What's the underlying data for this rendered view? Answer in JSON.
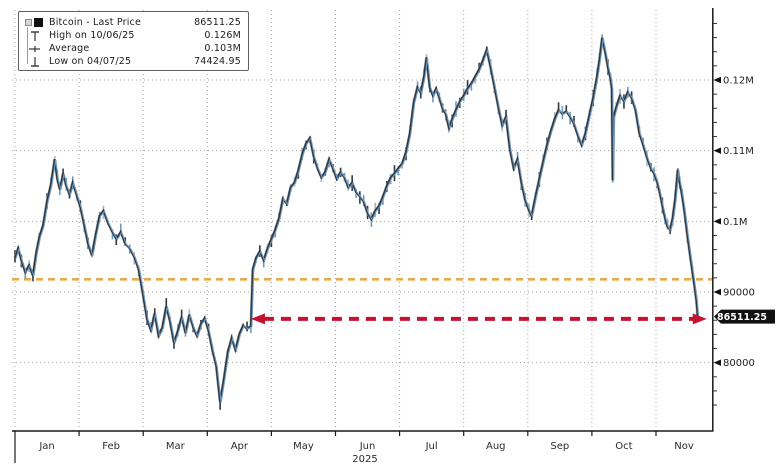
{
  "chart_data": {
    "type": "line",
    "title": "Bitcoin - Last Price",
    "last_price": 86511.25,
    "x_axis": {
      "month_labels": [
        "Jan",
        "Feb",
        "Mar",
        "Apr",
        "May",
        "Jun",
        "Jul",
        "Aug",
        "Sep",
        "Oct",
        "Nov"
      ],
      "year_label": "2025"
    },
    "y_axis": {
      "tick_labels": [
        {
          "price": 120000,
          "label": "0.12M"
        },
        {
          "price": 110000,
          "label": "0.11M"
        },
        {
          "price": 100000,
          "label": "0.1M"
        },
        {
          "price": 90000,
          "label": "90000"
        },
        {
          "price": 80000,
          "label": "80000"
        }
      ],
      "minor_tick_step": 2000,
      "price_range": [
        74000,
        128000
      ]
    },
    "legend": {
      "rows": [
        {
          "icon": "series-swatch",
          "label": "Bitcoin - Last Price",
          "value": "86511.25"
        },
        {
          "icon": "high-marker",
          "label": "High on 10/06/25",
          "value": "0.126M"
        },
        {
          "icon": "average-marker",
          "label": "Average",
          "value": "0.103M"
        },
        {
          "icon": "low-marker",
          "label": "Low on 04/07/25",
          "value": "74424.95"
        }
      ]
    },
    "annotations": {
      "reference_line": {
        "price": 91800,
        "color": "#e2a63f"
      },
      "level_arrow": {
        "price": 86200,
        "t_start": 3.79,
        "t_end": 10.62,
        "color": "#c41230"
      },
      "last_price_tag": {
        "text": "86511.25",
        "bg": "#101010",
        "fg": "#ffffff"
      }
    },
    "series": [
      {
        "name": "Bitcoin - Last Price",
        "color_dark": "#30373d",
        "color_blue": "#6d9ac3",
        "color_light": "#a9b2b9",
        "points": [
          [
            0.0,
            94800
          ],
          [
            0.05,
            96200
          ],
          [
            0.1,
            94500
          ],
          [
            0.16,
            92800
          ],
          [
            0.22,
            93800
          ],
          [
            0.28,
            92300
          ],
          [
            0.33,
            95500
          ],
          [
            0.38,
            97800
          ],
          [
            0.44,
            99500
          ],
          [
            0.5,
            102800
          ],
          [
            0.56,
            105200
          ],
          [
            0.62,
            108800
          ],
          [
            0.66,
            106000
          ],
          [
            0.7,
            104500
          ],
          [
            0.75,
            106800
          ],
          [
            0.8,
            105000
          ],
          [
            0.85,
            103800
          ],
          [
            0.9,
            105500
          ],
          [
            0.96,
            103800
          ],
          [
            1.02,
            102000
          ],
          [
            1.08,
            99500
          ],
          [
            1.14,
            96800
          ],
          [
            1.2,
            95200
          ],
          [
            1.26,
            98200
          ],
          [
            1.32,
            100800
          ],
          [
            1.38,
            101500
          ],
          [
            1.45,
            99800
          ],
          [
            1.52,
            98500
          ],
          [
            1.58,
            97500
          ],
          [
            1.65,
            98500
          ],
          [
            1.72,
            96800
          ],
          [
            1.79,
            96200
          ],
          [
            1.86,
            95000
          ],
          [
            1.93,
            93200
          ],
          [
            2.0,
            89500
          ],
          [
            2.06,
            86200
          ],
          [
            2.12,
            84600
          ],
          [
            2.18,
            87000
          ],
          [
            2.24,
            83800
          ],
          [
            2.3,
            85000
          ],
          [
            2.36,
            88000
          ],
          [
            2.42,
            85800
          ],
          [
            2.48,
            82800
          ],
          [
            2.54,
            84500
          ],
          [
            2.6,
            86500
          ],
          [
            2.66,
            84200
          ],
          [
            2.72,
            86800
          ],
          [
            2.78,
            85000
          ],
          [
            2.84,
            83800
          ],
          [
            2.9,
            85500
          ],
          [
            2.96,
            86300
          ],
          [
            3.02,
            84500
          ],
          [
            3.08,
            81800
          ],
          [
            3.14,
            79500
          ],
          [
            3.2,
            74425
          ],
          [
            3.26,
            77800
          ],
          [
            3.32,
            81500
          ],
          [
            3.38,
            83500
          ],
          [
            3.44,
            81800
          ],
          [
            3.5,
            84000
          ],
          [
            3.56,
            85300
          ],
          [
            3.62,
            84800
          ],
          [
            3.68,
            85200
          ],
          [
            3.71,
            93200
          ],
          [
            3.76,
            94800
          ],
          [
            3.82,
            95800
          ],
          [
            3.88,
            94500
          ],
          [
            3.94,
            96200
          ],
          [
            4.0,
            97500
          ],
          [
            4.06,
            98800
          ],
          [
            4.12,
            100500
          ],
          [
            4.18,
            103200
          ],
          [
            4.24,
            102500
          ],
          [
            4.3,
            104800
          ],
          [
            4.36,
            105500
          ],
          [
            4.42,
            107200
          ],
          [
            4.48,
            109500
          ],
          [
            4.54,
            111000
          ],
          [
            4.6,
            111800
          ],
          [
            4.66,
            109200
          ],
          [
            4.72,
            107500
          ],
          [
            4.78,
            106200
          ],
          [
            4.84,
            107000
          ],
          [
            4.9,
            108800
          ],
          [
            4.96,
            107500
          ],
          [
            5.02,
            106000
          ],
          [
            5.08,
            107000
          ],
          [
            5.14,
            106200
          ],
          [
            5.2,
            104800
          ],
          [
            5.26,
            105500
          ],
          [
            5.32,
            104200
          ],
          [
            5.38,
            103500
          ],
          [
            5.44,
            102800
          ],
          [
            5.5,
            101200
          ],
          [
            5.56,
            100300
          ],
          [
            5.62,
            101500
          ],
          [
            5.68,
            102200
          ],
          [
            5.74,
            103500
          ],
          [
            5.8,
            105000
          ],
          [
            5.86,
            106200
          ],
          [
            5.92,
            106800
          ],
          [
            5.98,
            107500
          ],
          [
            6.04,
            108200
          ],
          [
            6.1,
            109800
          ],
          [
            6.16,
            112500
          ],
          [
            6.22,
            116800
          ],
          [
            6.28,
            119000
          ],
          [
            6.33,
            118200
          ],
          [
            6.38,
            120500
          ],
          [
            6.42,
            123200
          ],
          [
            6.47,
            119000
          ],
          [
            6.52,
            117800
          ],
          [
            6.57,
            118800
          ],
          [
            6.62,
            117500
          ],
          [
            6.67,
            116000
          ],
          [
            6.72,
            115200
          ],
          [
            6.77,
            113200
          ],
          [
            6.82,
            114500
          ],
          [
            6.88,
            115800
          ],
          [
            6.94,
            117000
          ],
          [
            7.0,
            117800
          ],
          [
            7.06,
            118800
          ],
          [
            7.12,
            119500
          ],
          [
            7.18,
            120500
          ],
          [
            7.24,
            121500
          ],
          [
            7.3,
            122800
          ],
          [
            7.36,
            124300
          ],
          [
            7.42,
            121800
          ],
          [
            7.48,
            119000
          ],
          [
            7.54,
            116200
          ],
          [
            7.6,
            113600
          ],
          [
            7.66,
            114800
          ],
          [
            7.72,
            110200
          ],
          [
            7.78,
            107500
          ],
          [
            7.84,
            108800
          ],
          [
            7.9,
            105500
          ],
          [
            7.96,
            103000
          ],
          [
            8.02,
            101500
          ],
          [
            8.06,
            100800
          ],
          [
            8.12,
            103500
          ],
          [
            8.18,
            106000
          ],
          [
            8.24,
            108500
          ],
          [
            8.3,
            110800
          ],
          [
            8.36,
            112800
          ],
          [
            8.42,
            114500
          ],
          [
            8.48,
            115800
          ],
          [
            8.54,
            115200
          ],
          [
            8.6,
            115600
          ],
          [
            8.66,
            114800
          ],
          [
            8.72,
            113800
          ],
          [
            8.78,
            112200
          ],
          [
            8.84,
            110800
          ],
          [
            8.9,
            112500
          ],
          [
            8.96,
            115000
          ],
          [
            9.02,
            117500
          ],
          [
            9.08,
            120500
          ],
          [
            9.12,
            123000
          ],
          [
            9.16,
            126000
          ],
          [
            9.21,
            123800
          ],
          [
            9.25,
            121800
          ],
          [
            9.29,
            120200
          ],
          [
            9.31,
            118800
          ],
          [
            9.325,
            105800
          ],
          [
            9.34,
            114800
          ],
          [
            9.38,
            116200
          ],
          [
            9.44,
            117800
          ],
          [
            9.5,
            117000
          ],
          [
            9.56,
            118300
          ],
          [
            9.62,
            117500
          ],
          [
            9.68,
            115800
          ],
          [
            9.74,
            112500
          ],
          [
            9.8,
            110800
          ],
          [
            9.86,
            109000
          ],
          [
            9.92,
            107500
          ],
          [
            9.97,
            106800
          ],
          [
            10.02,
            105500
          ],
          [
            10.06,
            104000
          ],
          [
            10.1,
            102200
          ],
          [
            10.14,
            100500
          ],
          [
            10.18,
            99200
          ],
          [
            10.22,
            98800
          ],
          [
            10.26,
            100500
          ],
          [
            10.3,
            103200
          ],
          [
            10.34,
            107300
          ],
          [
            10.37,
            105500
          ],
          [
            10.41,
            103500
          ],
          [
            10.45,
            101000
          ],
          [
            10.49,
            98000
          ],
          [
            10.53,
            95300
          ],
          [
            10.57,
            92800
          ],
          [
            10.6,
            90800
          ],
          [
            10.63,
            88800
          ],
          [
            10.65,
            86511.25
          ]
        ]
      }
    ]
  }
}
